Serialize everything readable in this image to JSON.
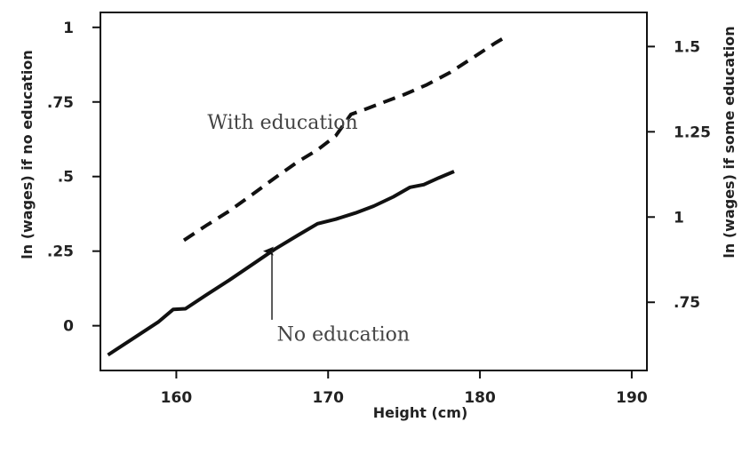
{
  "chart_data": {
    "type": "line",
    "title": "",
    "xlabel": "Height (cm)",
    "ylabel_left": "ln (wages) if no education",
    "ylabel_right": "ln (wages) if some education",
    "xlim": [
      155,
      191
    ],
    "ylim_left": [
      -0.15,
      1.05
    ],
    "ylim_right": [
      0.55,
      1.6
    ],
    "x_ticks": [
      160,
      170,
      180,
      190
    ],
    "x_tick_labels": [
      "160",
      "170",
      "180",
      "190"
    ],
    "y_left_ticks": [
      0,
      0.25,
      0.5,
      0.75,
      1
    ],
    "y_left_tick_labels": [
      "0",
      ".25",
      ".5",
      ".75",
      "1"
    ],
    "y_right_ticks": [
      0.75,
      1,
      1.25,
      1.5
    ],
    "y_right_tick_labels": [
      ".75",
      "1",
      "1.25",
      "1.5"
    ],
    "grid": false,
    "series": [
      {
        "label": "No education",
        "axis": "left",
        "style": "solid",
        "color": "#111111",
        "x": [
          155.5,
          157,
          158.8,
          159.8,
          160.6,
          162,
          163.5,
          165,
          166.5,
          168,
          169.3,
          170.5,
          171.8,
          173,
          174.3,
          175.4,
          176.3,
          177.3,
          178.3
        ],
        "y": [
          -0.098,
          -0.048,
          0.012,
          0.055,
          0.057,
          0.104,
          0.153,
          0.205,
          0.257,
          0.303,
          0.342,
          0.357,
          0.378,
          0.401,
          0.432,
          0.464,
          0.473,
          0.496,
          0.517
        ]
      },
      {
        "label": "With education",
        "axis": "right",
        "style": "dashed",
        "color": "#111111",
        "x": [
          160.5,
          162,
          163.5,
          165,
          166.5,
          168,
          169.3,
          170.5,
          171.5,
          172.5,
          173.5,
          175,
          176.5,
          178,
          179.5,
          181,
          181.8
        ],
        "y": [
          0.932,
          0.976,
          1.018,
          1.066,
          1.115,
          1.162,
          1.197,
          1.238,
          1.301,
          1.317,
          1.334,
          1.359,
          1.388,
          1.423,
          1.466,
          1.51,
          1.531
        ]
      }
    ],
    "annotations": [
      {
        "text": "With education",
        "x": 167,
        "y_left": 0.66
      },
      {
        "text": "No education",
        "x": 171,
        "y_left": -0.05
      }
    ],
    "arrow": {
      "from": {
        "x": 166.3,
        "y_left": 0.02
      },
      "to": {
        "x": 166.3,
        "y_left": 0.25
      }
    }
  }
}
